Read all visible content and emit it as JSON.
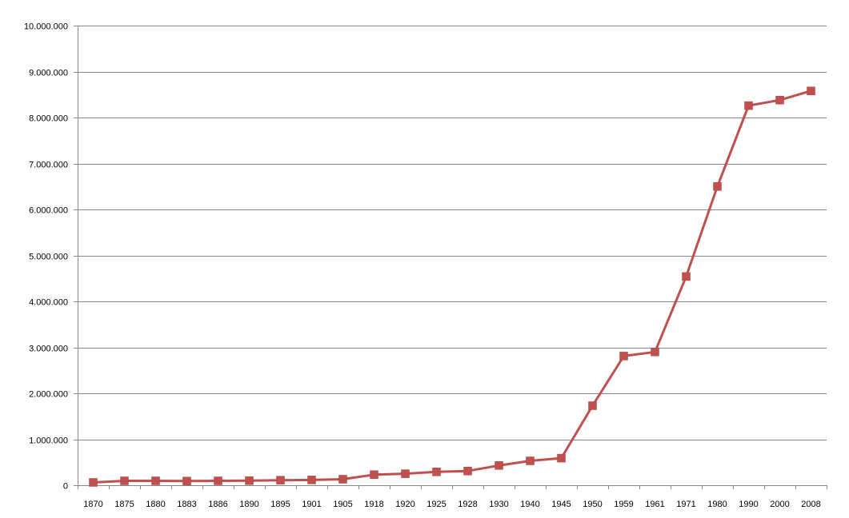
{
  "chart_data": {
    "type": "line",
    "title": "",
    "xlabel": "",
    "ylabel": "",
    "ylim": [
      0,
      10000000
    ],
    "y_ticks": [
      "0",
      "1.000.000",
      "2.000.000",
      "3.000.000",
      "4.000.000",
      "5.000.000",
      "6.000.000",
      "7.000.000",
      "8.000.000",
      "9.000.000",
      "10.000.000"
    ],
    "categories": [
      "1870",
      "1875",
      "1880",
      "1883",
      "1886",
      "1890",
      "1895",
      "1901",
      "1905",
      "1918",
      "1920",
      "1925",
      "1928",
      "1930",
      "1940",
      "1945",
      "1950",
      "1959",
      "1961",
      "1971",
      "1980",
      "1990",
      "2000",
      "2008"
    ],
    "series": [
      {
        "values": [
          60000,
          95000,
          95000,
          90000,
          95000,
          100000,
          110000,
          115000,
          130000,
          230000,
          250000,
          290000,
          310000,
          430000,
          530000,
          590000,
          1730000,
          2810000,
          2900000,
          4540000,
          6500000,
          8260000,
          8380000,
          8580000
        ]
      }
    ],
    "grid": true,
    "legend": "none",
    "colors": {
      "line": "#C0504D",
      "marker": "#C0504D",
      "grid": "#868686"
    }
  }
}
